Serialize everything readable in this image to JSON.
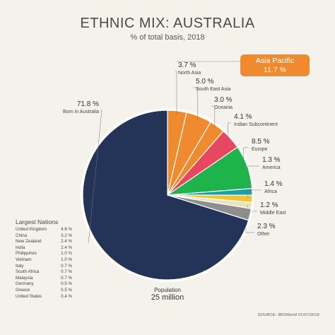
{
  "chart_data": {
    "type": "pie",
    "title": "ETHNIC MIX: AUSTRALIA",
    "subtitle": "% of total basis, 2018",
    "slices": [
      {
        "label": "North Asia",
        "value": 3.7,
        "value_text": "3.7 %",
        "color": "#ef8b2e"
      },
      {
        "label": "South East Asia",
        "value": 5.0,
        "value_text": "5.0 %",
        "color": "#ef8b2e"
      },
      {
        "label": "Oceania",
        "value": 3.0,
        "value_text": "3.0 %",
        "color": "#ef8b2e"
      },
      {
        "label": "Indian Subcontinent",
        "value": 4.1,
        "value_text": "4.1 %",
        "color": "#e8485f"
      },
      {
        "label": "Europe",
        "value": 8.5,
        "value_text": "8.5 %",
        "color": "#1fb34b"
      },
      {
        "label": "America",
        "value": 1.3,
        "value_text": "1.3 %",
        "color": "#1aa0a8"
      },
      {
        "label": "Africa",
        "value": 1.4,
        "value_text": "1.4 %",
        "color": "#f4c430"
      },
      {
        "label": "Middle East",
        "value": 1.2,
        "value_text": "1.2 %",
        "color": "#e8e3b8"
      },
      {
        "label": "Other",
        "value": 2.3,
        "value_text": "2.3 %",
        "color": "#8e8e8e"
      },
      {
        "label": "Born in Australia",
        "value": 71.8,
        "value_text": "71.8 %",
        "color": "#243358"
      }
    ],
    "group_badge": {
      "label": "Asia Pacific",
      "value": "11.7 %"
    },
    "largest_nations": {
      "title": "Largest Nations",
      "rows": [
        {
          "name": "United Kingdom",
          "value": "4.6 %"
        },
        {
          "name": "China",
          "value": "3.2 %"
        },
        {
          "name": "New Zealand",
          "value": "2.4 %"
        },
        {
          "name": "India",
          "value": "2.4 %"
        },
        {
          "name": "Philippines",
          "value": "1.0 %"
        },
        {
          "name": "Vietnam",
          "value": "1.0 %"
        },
        {
          "name": "Italy",
          "value": "0.7 %"
        },
        {
          "name": "South Africa",
          "value": "0.7 %"
        },
        {
          "name": "Malaysia",
          "value": "0.7 %"
        },
        {
          "name": "Germany",
          "value": "0.5 %"
        },
        {
          "name": "Greece",
          "value": "0.5 %"
        },
        {
          "name": "United States",
          "value": "0.4 %"
        }
      ]
    },
    "population": {
      "label": "Population",
      "value": "25 million"
    },
    "source": "SOURCE: IBISWorld 01/07/2019"
  }
}
